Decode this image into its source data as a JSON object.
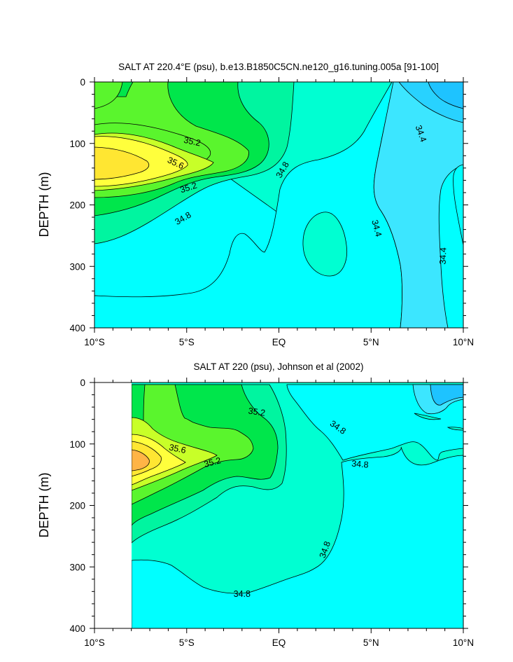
{
  "chart_data": [
    {
      "type": "contour",
      "title": "SALT AT 220.4°E (psu), b.e13.B1850C5CN.ne120_g16.tuning.005a [91-100]",
      "xlabel": "",
      "ylabel": "DEPTH (m)",
      "x_tick_labels": [
        "10°S",
        "5°S",
        "EQ",
        "5°N",
        "10°N"
      ],
      "x_ticks": [
        -10,
        -5,
        0,
        5,
        10
      ],
      "y_tick_labels": [
        "0",
        "100",
        "200",
        "300",
        "400"
      ],
      "y_ticks": [
        0,
        100,
        200,
        300,
        400
      ],
      "xlim": [
        -10,
        10
      ],
      "ylim": [
        400,
        0
      ],
      "contour_labels": [
        {
          "text": "35.2",
          "x": -4.7,
          "y": 97,
          "rotate": 12
        },
        {
          "text": "35.6",
          "x": -5.6,
          "y": 132,
          "rotate": 25
        },
        {
          "text": "35.2",
          "x": -4.9,
          "y": 172,
          "rotate": -18
        },
        {
          "text": "34.8",
          "x": -5.2,
          "y": 222,
          "rotate": -30
        },
        {
          "text": "34.8",
          "x": 0.2,
          "y": 143,
          "rotate": -60
        },
        {
          "text": "34.4",
          "x": 7.7,
          "y": 84,
          "rotate": 70
        },
        {
          "text": "34.4",
          "x": 5.3,
          "y": 238,
          "rotate": 75
        },
        {
          "text": "34.4",
          "x": 8.9,
          "y": 283,
          "rotate": -88
        }
      ]
    },
    {
      "type": "contour",
      "title": "SALT AT 220 (psu), Johnson et al (2002)",
      "xlabel": "",
      "ylabel": "DEPTH (m)",
      "x_tick_labels": [
        "10°S",
        "5°S",
        "EQ",
        "5°N",
        "10°N"
      ],
      "x_ticks": [
        -10,
        -5,
        0,
        5,
        10
      ],
      "y_tick_labels": [
        "0",
        "100",
        "200",
        "300",
        "400"
      ],
      "y_ticks": [
        0,
        100,
        200,
        300,
        400
      ],
      "xlim": [
        -10,
        10
      ],
      "ylim": [
        400,
        0
      ],
      "data_xmin": -8,
      "contour_labels": [
        {
          "text": "35.2",
          "x": -1.2,
          "y": 48,
          "rotate": 8
        },
        {
          "text": "35.6",
          "x": -5.5,
          "y": 108,
          "rotate": 12
        },
        {
          "text": "35.2",
          "x": -3.6,
          "y": 130,
          "rotate": -15
        },
        {
          "text": "34.8",
          "x": 3.2,
          "y": 73,
          "rotate": 35
        },
        {
          "text": "34.8",
          "x": 4.4,
          "y": 133,
          "rotate": 5
        },
        {
          "text": "34.8",
          "x": 2.5,
          "y": 272,
          "rotate": -70
        },
        {
          "text": "34.8",
          "x": -2.0,
          "y": 344,
          "rotate": 0
        }
      ]
    }
  ],
  "colors": {
    "s34_0": "#1ec3ff",
    "s34_4": "#3ce6ff",
    "s34_6": "#00ffff",
    "s34_8": "#00ffd2",
    "s35_0": "#00f5a0",
    "s35_2": "#00e64b",
    "s35_4": "#5af52d",
    "s35_6": "#c8ff28",
    "s35_8": "#ffff3c",
    "s36_0": "#ffe632",
    "s36_2": "#ffb446"
  }
}
